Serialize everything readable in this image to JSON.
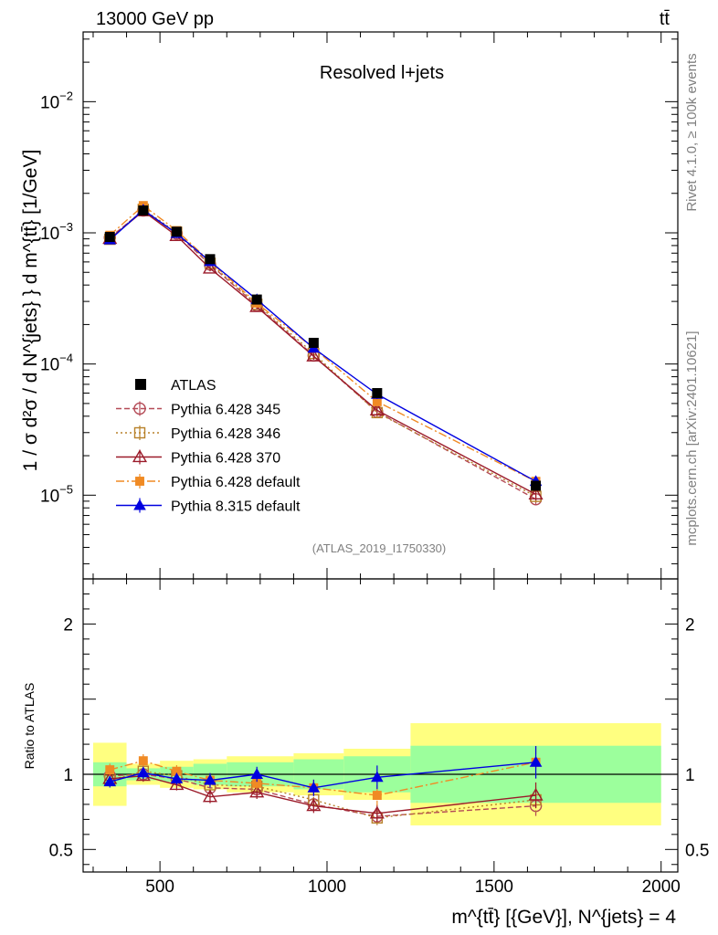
{
  "header": {
    "energy": "13000 GeV pp",
    "process": "tt̄"
  },
  "side": {
    "rivet": "Rivet 4.1.0, ≥ 100k events",
    "mcplots": "mcplots.cern.ch [arXiv:2401.10621]"
  },
  "chart_data": {
    "type": "line",
    "title": "Resolved l+jets",
    "analysis_tag": "(ATLAS_2019_I1750330)",
    "xlabel": "m^{tt̄} [{GeV}], N^{jets} = 4",
    "ylabel": "1 / σ d²σ / d N^{jets} } d m^{tt̄} [1/GeV]",
    "ratio_ylabel": "Ratio to ATLAS",
    "xlim": [
      270,
      2050
    ],
    "ylim": [
      2.3e-06,
      0.034
    ],
    "yscale": "log",
    "ratio_ylim": [
      0.35,
      2.3
    ],
    "x_ticks": [
      500,
      1000,
      1500,
      2000
    ],
    "y_ticks": [
      {
        "value": 0.01,
        "base": "10",
        "exp": "−2"
      },
      {
        "value": 0.001,
        "base": "10",
        "exp": "−3"
      },
      {
        "value": 0.0001,
        "base": "10",
        "exp": "−4"
      },
      {
        "value": 1e-05,
        "base": "10",
        "exp": "−5"
      }
    ],
    "ratio_ticks": [
      {
        "value": 0.5,
        "label": "0.5"
      },
      {
        "value": 1,
        "label": "1"
      },
      {
        "value": 2,
        "label": "2"
      }
    ],
    "bins": [
      [
        300,
        400
      ],
      [
        400,
        500
      ],
      [
        500,
        600
      ],
      [
        600,
        700
      ],
      [
        700,
        900
      ],
      [
        900,
        1050
      ],
      [
        1050,
        1250
      ],
      [
        1250,
        2000
      ]
    ],
    "x": [
      350,
      450,
      550,
      650,
      790,
      960,
      1150,
      1625
    ],
    "reference": {
      "name": "ATLAS",
      "values": [
        0.00093,
        0.00148,
        0.00102,
        0.00063,
        0.00031,
        0.000145,
        6e-05,
        1.18e-05
      ],
      "band_inner": [
        0.08,
        0.04,
        0.05,
        0.07,
        0.08,
        0.1,
        0.12,
        0.19
      ],
      "band_outer": [
        0.21,
        0.07,
        0.09,
        0.1,
        0.12,
        0.14,
        0.17,
        0.34
      ]
    },
    "series": [
      {
        "name": "Pythia 6.428 345",
        "color": "#b44a56",
        "marker": "open-circle",
        "dash": "6,3",
        "ratio": [
          0.99,
          1.0,
          0.97,
          0.91,
          0.9,
          0.8,
          0.72,
          0.79
        ]
      },
      {
        "name": "Pythia 6.428 346",
        "color": "#b8812a",
        "marker": "open-square",
        "dash": "2,3",
        "ratio": [
          0.96,
          1.02,
          0.99,
          0.93,
          0.92,
          0.83,
          0.71,
          0.83
        ]
      },
      {
        "name": "Pythia 6.428 370",
        "color": "#9b1b2a",
        "marker": "open-triangle",
        "dash": "",
        "ratio": [
          0.97,
          0.99,
          0.93,
          0.85,
          0.88,
          0.79,
          0.74,
          0.86
        ]
      },
      {
        "name": "Pythia 6.428 default",
        "color": "#f08a24",
        "marker": "filled-square",
        "dash": "9,3,2,3",
        "ratio": [
          1.03,
          1.09,
          1.02,
          0.96,
          0.94,
          0.91,
          0.86,
          1.08
        ]
      },
      {
        "name": "Pythia 8.315 default",
        "color": "#0000e0",
        "marker": "filled-triangle",
        "dash": "",
        "ratio": [
          0.95,
          1.01,
          0.97,
          0.96,
          1.0,
          0.91,
          0.98,
          1.08
        ]
      }
    ]
  }
}
